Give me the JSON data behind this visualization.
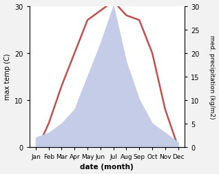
{
  "months": [
    "Jan",
    "Feb",
    "Mar",
    "Apr",
    "May",
    "Jun",
    "Jul",
    "Aug",
    "Sep",
    "Oct",
    "Nov",
    "Dec"
  ],
  "temperature": [
    -1,
    5,
    13,
    20,
    27,
    29,
    31,
    28,
    27,
    20,
    8,
    0
  ],
  "precipitation": [
    2,
    3,
    5,
    8,
    15,
    22,
    30,
    18,
    10,
    5,
    3,
    1
  ],
  "temp_color": "#c0504d",
  "precip_fill_color": "#c5cce8",
  "xlabel": "date (month)",
  "ylabel_left": "max temp (C)",
  "ylabel_right": "med. precipitation (kg/m2)",
  "ylim_left": [
    0,
    30
  ],
  "ylim_right": [
    0,
    30
  ],
  "yticks_left": [
    0,
    10,
    20,
    30
  ],
  "yticks_right": [
    0,
    5,
    10,
    15,
    20,
    25,
    30
  ],
  "background_color": "#f2f2f2",
  "plot_bg_color": "#ffffff"
}
